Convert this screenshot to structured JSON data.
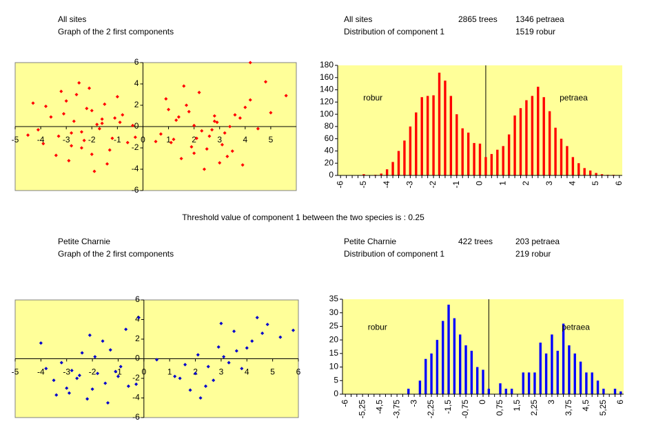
{
  "threshold_note": "Threshold value of component 1 between the two species is : 0.25",
  "chart_data": [
    {
      "type": "scatter",
      "title_lines": [
        "All sites",
        "Graph of the 2 first components"
      ],
      "color": "#ff0000",
      "xlim": [
        -5,
        6
      ],
      "ylim": [
        -6,
        6
      ],
      "xticks": [
        -5,
        -4,
        -3,
        -2,
        -1,
        0,
        1,
        2,
        3,
        4,
        5
      ],
      "yticks": [
        -6,
        -4,
        -2,
        0,
        2,
        4,
        6
      ],
      "x": [
        -3.1,
        -2.4,
        -1.5,
        -2.8,
        -0.9,
        -3.6,
        -2.0,
        -1.2,
        -2.6,
        -1.8,
        -3.3,
        -0.6,
        -2.2,
        -4.1,
        -1.0,
        -2.9,
        -1.6,
        -3.8,
        -2.3,
        -0.4,
        -1.9,
        -3.0,
        -2.7,
        -1.3,
        -4.5,
        -2.1,
        -0.8,
        -3.4,
        -1.7,
        -2.5,
        -3.9,
        -1.1,
        -2.0,
        -4.3,
        -1.4,
        -2.8,
        -0.3,
        -3.2,
        -2.4,
        -1.6,
        1.2,
        2.8,
        3.5,
        1.8,
        2.3,
        0.9,
        3.1,
        2.0,
        4.0,
        1.5,
        2.6,
        3.8,
        1.1,
        2.2,
        4.5,
        1.7,
        3.3,
        2.9,
        0.7,
        2.4,
        3.6,
        1.9,
        4.2,
        2.7,
        1.4,
        3.0,
        5.0,
        2.1,
        1.6,
        3.4,
        2.5,
        4.8,
        1.0,
        3.2,
        2.0,
        5.6,
        0.5,
        2.8,
        3.9,
        1.3,
        4.2
      ],
      "values": [
        1.2,
        -0.5,
        2.1,
        -1.8,
        0.4,
        0.9,
        -2.6,
        -1.1,
        3.0,
        0.2,
        -0.9,
        -1.5,
        1.7,
        -0.3,
        2.8,
        -3.2,
        0.7,
        1.9,
        -1.3,
        0.1,
        -4.2,
        2.4,
        0.5,
        -2.2,
        -0.8,
        3.6,
        1.1,
        -2.7,
        -0.2,
        4.1,
        -1.6,
        0.8,
        1.5,
        2.2,
        -3.5,
        -0.6,
        -1.0,
        3.3,
        -2.0,
        0.3,
        -1.2,
        0.5,
        -2.3,
        1.4,
        -0.4,
        2.6,
        -1.7,
        0.1,
        1.8,
        -3.0,
        -0.9,
        0.8,
        -1.5,
        3.2,
        -0.2,
        2.0,
        -2.8,
        0.4,
        -0.7,
        -4.0,
        1.1,
        -1.9,
        2.5,
        -0.3,
        0.9,
        -3.4,
        1.3,
        -1.1,
        3.8,
        0.0,
        -2.1,
        4.2,
        1.6,
        -0.6,
        -2.5,
        2.9,
        -1.4,
        1.0,
        -3.6,
        0.6,
        6.0
      ]
    },
    {
      "type": "bar",
      "title_lines": [
        "All sites",
        "Distribution of component 1"
      ],
      "counts": [
        "2865 trees",
        "1346 petraea",
        "1519 robur"
      ],
      "annotations": [
        "robur",
        "petraea"
      ],
      "color": "#ff0000",
      "threshold": 0.25,
      "xlim": [
        -6.125,
        6.125
      ],
      "ylim": [
        0,
        180
      ],
      "yticks": [
        0,
        20,
        40,
        60,
        80,
        100,
        120,
        140,
        160,
        180
      ],
      "categories": [
        "-6",
        null,
        null,
        null,
        "-5",
        null,
        null,
        null,
        "-4",
        null,
        null,
        null,
        "-3",
        null,
        null,
        null,
        "-2",
        null,
        null,
        null,
        "-1",
        null,
        null,
        null,
        "0",
        null,
        null,
        null,
        "1",
        null,
        null,
        null,
        "2",
        null,
        null,
        null,
        "3",
        null,
        null,
        null,
        "4",
        null,
        null,
        null,
        "5",
        null,
        null,
        null,
        "6"
      ],
      "values": [
        0,
        0,
        0,
        0,
        2,
        0,
        1,
        3,
        10,
        22,
        40,
        57,
        80,
        103,
        128,
        130,
        131,
        168,
        155,
        130,
        100,
        77,
        70,
        53,
        52,
        30,
        35,
        42,
        48,
        67,
        98,
        110,
        123,
        130,
        145,
        128,
        105,
        78,
        60,
        48,
        30,
        20,
        12,
        8,
        4,
        2,
        1,
        1,
        0
      ]
    },
    {
      "type": "scatter",
      "title_lines": [
        "Petite Charnie",
        "Graph of the 2 first components"
      ],
      "color": "#0000cc",
      "xlim": [
        -5,
        6
      ],
      "ylim": [
        -6,
        6
      ],
      "xticks": [
        -5,
        -4,
        -3,
        -2,
        -1,
        0,
        1,
        2,
        3,
        4,
        5,
        6
      ],
      "yticks": [
        -6,
        -4,
        -2,
        0,
        2,
        4,
        6
      ],
      "x": [
        -2.8,
        -1.5,
        -3.2,
        -2.0,
        -1.0,
        -3.5,
        -2.4,
        -1.8,
        -0.6,
        -2.9,
        -1.3,
        -3.8,
        -2.2,
        -1.6,
        -0.9,
        -2.6,
        -3.0,
        -1.1,
        -2.1,
        -0.3,
        -3.4,
        -1.9,
        -2.5,
        -1.4,
        -0.7,
        1.4,
        2.0,
        2.5,
        3.1,
        3.6,
        4.2,
        1.8,
        2.7,
        3.3,
        4.0,
        4.6,
        1.6,
        2.2,
        2.9,
        3.8,
        4.8,
        5.3,
        1.2,
        2.4,
        3.5,
        4.4,
        2.1,
        3.0,
        5.8,
        0.5,
        -4.0,
        -0.2
      ],
      "values": [
        -1.2,
        -2.5,
        -0.4,
        -3.1,
        -1.8,
        -2.2,
        0.6,
        -1.5,
        -2.8,
        -3.5,
        0.9,
        -1.0,
        -4.1,
        1.8,
        -0.8,
        -2.0,
        -3.0,
        -1.3,
        2.4,
        -2.6,
        -3.7,
        0.2,
        -1.7,
        -4.5,
        3.0,
        -2.0,
        -1.5,
        -0.8,
        0.2,
        0.8,
        1.8,
        -3.2,
        -2.2,
        -0.4,
        1.1,
        2.6,
        -0.6,
        -4.0,
        1.2,
        -1.0,
        3.5,
        2.2,
        -1.8,
        -2.8,
        2.8,
        4.2,
        0.4,
        3.6,
        2.9,
        -0.1,
        1.6,
        4.2
      ]
    },
    {
      "type": "bar",
      "title_lines": [
        "Petite Charnie",
        "Distribution of component 1"
      ],
      "counts": [
        "422 trees",
        "203 petraea",
        "219 robur"
      ],
      "annotations": [
        "robur",
        "petraea"
      ],
      "color": "#0000ff",
      "threshold": 0.25,
      "xlim": [
        -6.125,
        6.125
      ],
      "ylim": [
        0,
        35
      ],
      "yticks": [
        0,
        5,
        10,
        15,
        20,
        25,
        30,
        35
      ],
      "categories": [
        "-6",
        null,
        null,
        "-5,25",
        null,
        null,
        "-4,5",
        null,
        null,
        "-3,75",
        null,
        null,
        "-3",
        null,
        null,
        "-2,25",
        null,
        null,
        "-1,5",
        null,
        null,
        "-0,75",
        null,
        null,
        "0",
        null,
        null,
        "0,75",
        null,
        null,
        "1,5",
        null,
        null,
        "2,25",
        null,
        null,
        "3",
        null,
        null,
        "3,75",
        null,
        null,
        "4,5",
        null,
        null,
        "5,25",
        null,
        null,
        "6"
      ],
      "values": [
        0,
        0,
        0,
        0,
        0,
        0,
        0,
        0,
        0,
        0,
        0,
        2,
        0,
        5,
        13,
        15,
        20,
        27,
        33,
        28,
        22,
        18,
        16,
        10,
        9,
        2,
        0,
        4,
        2,
        2,
        0,
        8,
        8,
        8,
        19,
        15,
        22,
        16,
        26,
        18,
        15,
        12,
        8,
        8,
        5,
        2,
        0,
        2,
        1
      ]
    }
  ]
}
